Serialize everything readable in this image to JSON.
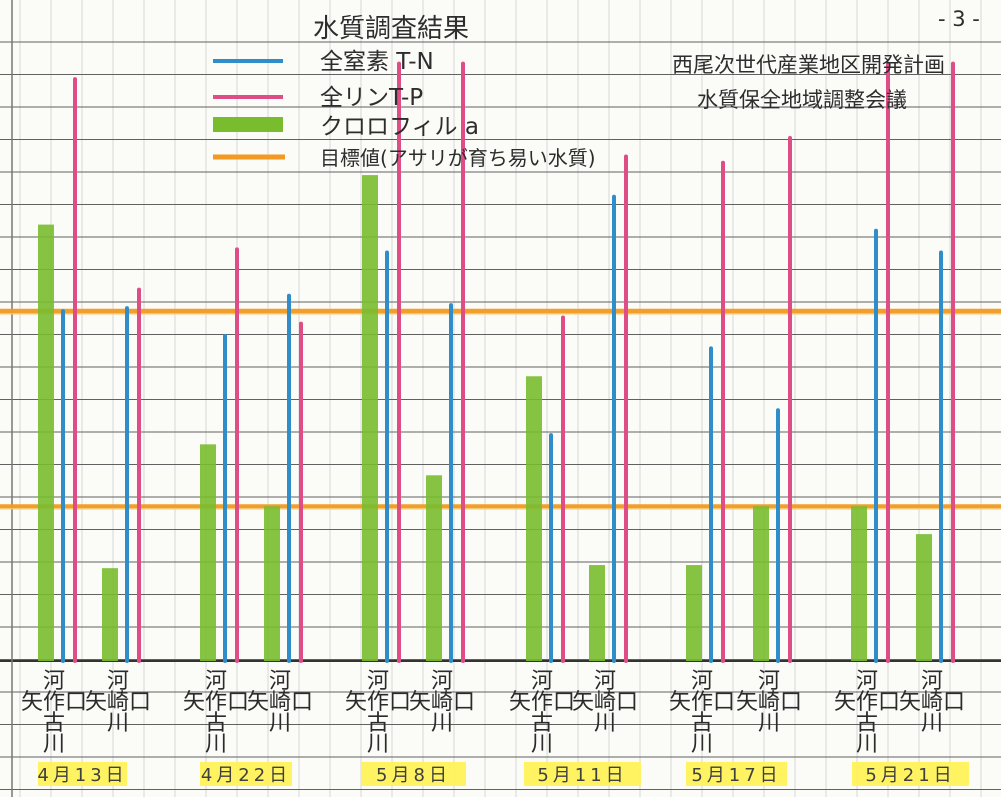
{
  "page_number": "- 3 -",
  "colors": {
    "nitrogen": "#2f8ec9",
    "phosphorus": "#df4d86",
    "chlorophyll": "#79bd2f",
    "target": "#f29a21",
    "highlight": "#fff25c",
    "grid": "#616161",
    "gridLight": "#d7d7d7"
  },
  "header": {
    "title": "水質調査結果",
    "org_line1": "西尾次世代産業地区開発計画",
    "org_line2": "水質保全地域調整会議"
  },
  "legend": [
    {
      "key": "nitrogen",
      "label": "全窒素 T-N",
      "icon": "blue-line-icon"
    },
    {
      "key": "phosphorus",
      "label": "全リンT-P",
      "icon": "pink-line-icon"
    },
    {
      "key": "chlorophyll",
      "label": "クロロフィル a",
      "icon": "green-bar-icon"
    },
    {
      "key": "target",
      "label": "目標値(アサリが育ち易い水質)",
      "icon": "orange-line-icon"
    }
  ],
  "chart_data": {
    "type": "bar",
    "stations": [
      {
        "date": "4月13日",
        "station": "矢作古川",
        "station_lines": [
          "河",
          "矢作口",
          "古",
          "川"
        ],
        "chlorophyll": 14.1,
        "nitrogen": 11.3,
        "phosphorus": 18.8
      },
      {
        "date": "4月13日",
        "station": "矢崎川",
        "station_lines": [
          "河",
          "矢崎口",
          "川"
        ],
        "chlorophyll": 3,
        "nitrogen": 11.4,
        "phosphorus": 12
      },
      {
        "date": "4月22日",
        "station": "矢作古川",
        "station_lines": [
          "河",
          "矢作口",
          "古",
          "川"
        ],
        "chlorophyll": 7,
        "nitrogen": 10.5,
        "phosphorus": 13.3
      },
      {
        "date": "4月22日",
        "station": "矢崎川",
        "station_lines": [
          "河",
          "矢崎口",
          "川"
        ],
        "chlorophyll": 5,
        "nitrogen": 11.8,
        "phosphorus": 10.9
      },
      {
        "date": "5月8日",
        "station": "矢作古川",
        "station_lines": [
          "河",
          "矢作口",
          "古",
          "川"
        ],
        "chlorophyll": 15.7,
        "nitrogen": 13.2,
        "phosphorus": 19.3
      },
      {
        "date": "5月8日",
        "station": "矢崎川",
        "station_lines": [
          "河",
          "矢崎口",
          "川"
        ],
        "chlorophyll": 6,
        "nitrogen": 11.5,
        "phosphorus": 19.3
      },
      {
        "date": "5月11日",
        "station": "矢作古川",
        "station_lines": [
          "河",
          "矢作口",
          "古",
          "川"
        ],
        "chlorophyll": 9.2,
        "nitrogen": 7.3,
        "phosphorus": 11.1
      },
      {
        "date": "5月11日",
        "station": "矢崎川",
        "station_lines": [
          "河",
          "矢崎口",
          "川"
        ],
        "chlorophyll": 3.1,
        "nitrogen": 15,
        "phosphorus": 16.3
      },
      {
        "date": "5月17日",
        "station": "矢作古川",
        "station_lines": [
          "河",
          "矢作口",
          "古",
          "川"
        ],
        "chlorophyll": 3.1,
        "nitrogen": 10.1,
        "phosphorus": 16.1
      },
      {
        "date": "5月17日",
        "station": "矢崎川",
        "station_lines": [
          "河",
          "矢崎口",
          "川"
        ],
        "chlorophyll": 5,
        "nitrogen": 8.1,
        "phosphorus": 16.9
      },
      {
        "date": "5月21日",
        "station": "矢作古川",
        "station_lines": [
          "河",
          "矢作口",
          "古",
          "川"
        ],
        "chlorophyll": 5,
        "nitrogen": 13.9,
        "phosphorus": 19.3
      },
      {
        "date": "5月21日",
        "station": "矢崎川",
        "station_lines": [
          "河",
          "矢崎口",
          "川"
        ],
        "chlorophyll": 4.1,
        "nitrogen": 13.2,
        "phosphorus": 19.3
      }
    ],
    "date_labels": [
      "4月13日",
      "4月22日",
      "5月8日",
      "5月11日",
      "5月17日",
      "5月21日"
    ],
    "target_lines": [
      11.3,
      5
    ],
    "ylim": [
      0,
      20
    ],
    "grid": true
  }
}
